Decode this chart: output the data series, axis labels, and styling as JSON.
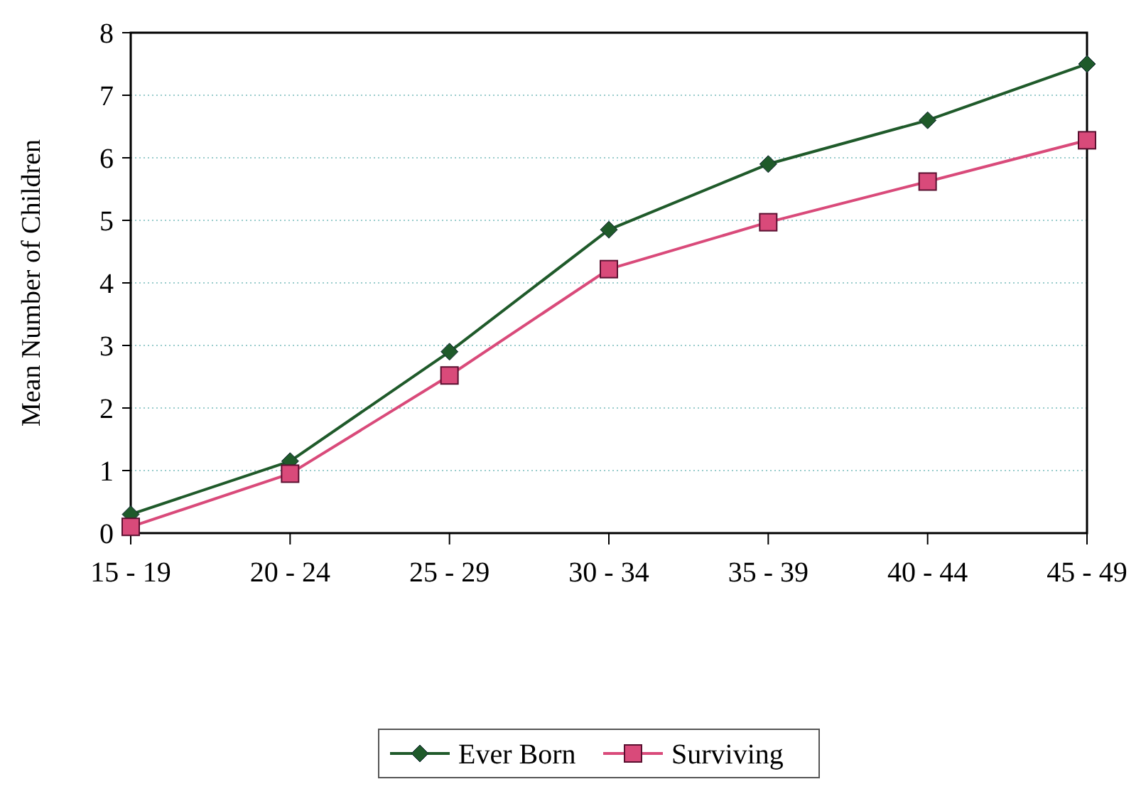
{
  "chart_data": {
    "type": "line",
    "ylabel": "Mean Number of Children",
    "categories": [
      "15 - 19",
      "20 - 24",
      "25 - 29",
      "30 - 34",
      "35 - 39",
      "40 - 44",
      "45 - 49"
    ],
    "series": [
      {
        "name": "Ever Born",
        "color": "#1f5a2a",
        "marker": "diamond",
        "values": [
          0.3,
          1.15,
          2.9,
          4.85,
          5.9,
          6.6,
          7.5
        ]
      },
      {
        "name": "Surviving",
        "color": "#d94a7a",
        "marker": "square",
        "values": [
          0.1,
          0.95,
          2.52,
          4.22,
          4.97,
          5.62,
          6.28
        ]
      }
    ],
    "ylim": [
      0,
      8
    ],
    "yticks": [
      0,
      1,
      2,
      3,
      4,
      5,
      6,
      7,
      8
    ],
    "grid": "y",
    "legend": "bottom",
    "line_style": "solid"
  }
}
